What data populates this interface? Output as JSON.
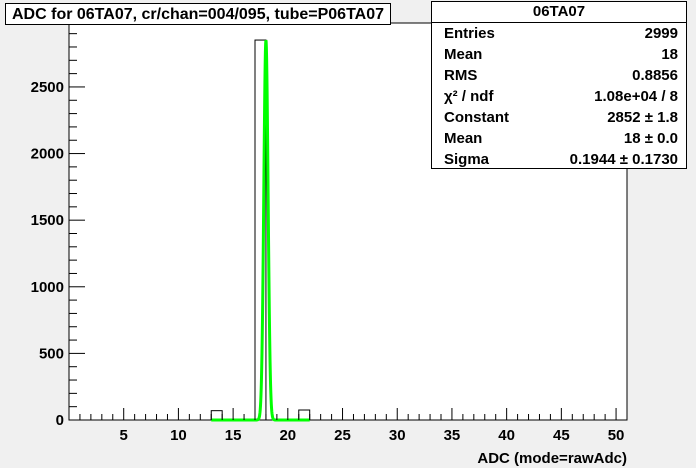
{
  "title": "ADC for 06TA07,  cr/chan=004/095,  tube=P06TA07",
  "stats": {
    "name": "06TA07",
    "rows": [
      {
        "key": "Entries",
        "value": "2999"
      },
      {
        "key": "Mean",
        "value": "18"
      },
      {
        "key": "RMS",
        "value": "0.8856"
      },
      {
        "key": "χ² / ndf",
        "value": "1.08e+04 / 8"
      },
      {
        "key": "Constant",
        "value": "2852 ± 1.8"
      },
      {
        "key": "Mean",
        "value": "18 ± 0.0"
      },
      {
        "key": "Sigma",
        "value": "0.1944 ± 0.1730"
      }
    ]
  },
  "chart_data": {
    "type": "bar",
    "xlabel": "ADC (mode=rawAdc)",
    "ylabel": "",
    "xlim": [
      0,
      51
    ],
    "ylim": [
      0,
      2980
    ],
    "xticks": [
      5,
      10,
      15,
      20,
      25,
      30,
      35,
      40,
      45,
      50
    ],
    "yticks": [
      0,
      500,
      1000,
      1500,
      2000,
      2500
    ],
    "bin_width": 1,
    "bins": [
      {
        "x0": 13,
        "value": 70
      },
      {
        "x0": 17,
        "value": 2852
      },
      {
        "x0": 21,
        "value": 75
      }
    ],
    "fit": {
      "type": "gaussian",
      "constant": 2852,
      "mean": 18,
      "sigma": 0.1944,
      "x_range": [
        13,
        22
      ],
      "color": "#00ff00"
    },
    "hist_color": "#000000",
    "frame_fill": "#ffffff"
  }
}
